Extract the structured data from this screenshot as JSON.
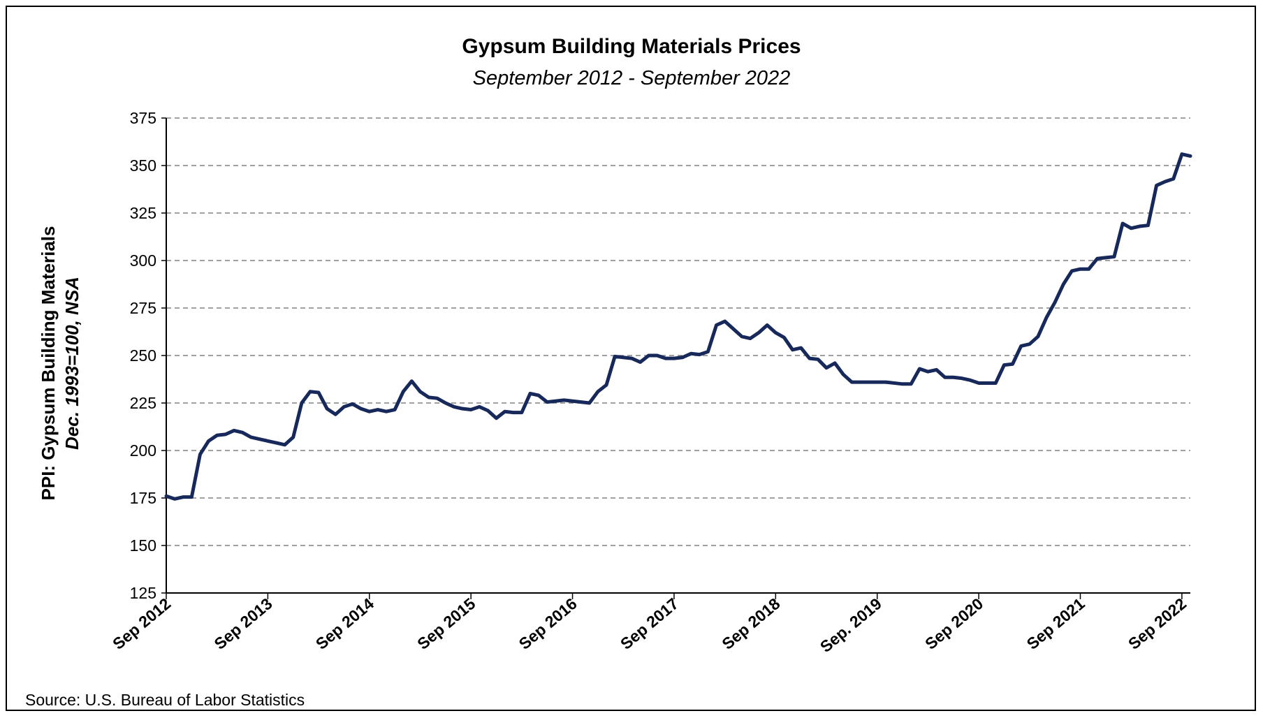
{
  "chart_data": {
    "type": "line",
    "title": "Gypsum Building Materials Prices",
    "subtitle": "September 2012 - September 2022",
    "ylabel_line1": "PPI: Gypsum Building Materials",
    "ylabel_line2": "Dec. 1993=100, NSA",
    "xlabel": "",
    "ylim": [
      125,
      375
    ],
    "yticks": [
      125,
      150,
      175,
      200,
      225,
      250,
      275,
      300,
      325,
      350,
      375
    ],
    "xtick_labels": [
      "Sep 2012",
      "Sep 2013",
      "Sep 2014",
      "Sep 2015",
      "Sep 2016",
      "Sep 2017",
      "Sep 2018",
      "Sep. 2019",
      "Sep 2020",
      "Sep 2021",
      "Sep 2022"
    ],
    "x_start": "Sep 2012",
    "x_end": "Sep 2022",
    "grid": "horizontal dashed",
    "line_color": "#17285a",
    "series": [
      {
        "values": [
          176,
          174.5,
          175.5,
          175.5,
          198,
          205,
          208,
          208.5,
          210.5,
          209.5,
          207,
          206,
          205,
          204,
          203,
          207,
          225,
          231,
          230.5,
          222,
          219,
          223,
          224.5,
          222,
          220.5,
          221.5,
          220.5,
          221.5,
          231,
          236.5,
          231,
          228,
          227.5,
          225,
          223,
          222,
          221.5,
          223,
          221,
          217,
          220.5,
          220,
          220,
          230,
          229,
          225.5,
          226,
          226.5,
          226,
          225.5,
          225,
          231,
          234.5,
          249.5,
          249,
          248.5,
          246.5,
          250,
          250,
          248.5,
          248.5,
          249,
          251,
          250.5,
          252,
          266,
          268,
          264,
          260,
          259,
          262,
          266,
          262,
          259.5,
          253,
          254,
          248.5,
          248,
          243.5,
          246,
          240,
          236,
          236,
          236,
          236,
          236,
          235.5,
          235,
          235,
          243,
          241.5,
          242.5,
          238.5,
          238.5,
          238,
          237,
          235.5,
          235.5,
          235.5,
          245,
          245.5,
          255,
          256,
          260,
          270,
          278,
          287.5,
          294.5,
          295.5,
          295.5,
          301,
          301.5,
          302,
          319.5,
          317,
          318,
          318.5,
          339.5,
          341.5,
          343,
          356,
          355
        ]
      }
    ],
    "source": "Source: U.S. Bureau of Labor Statistics"
  }
}
